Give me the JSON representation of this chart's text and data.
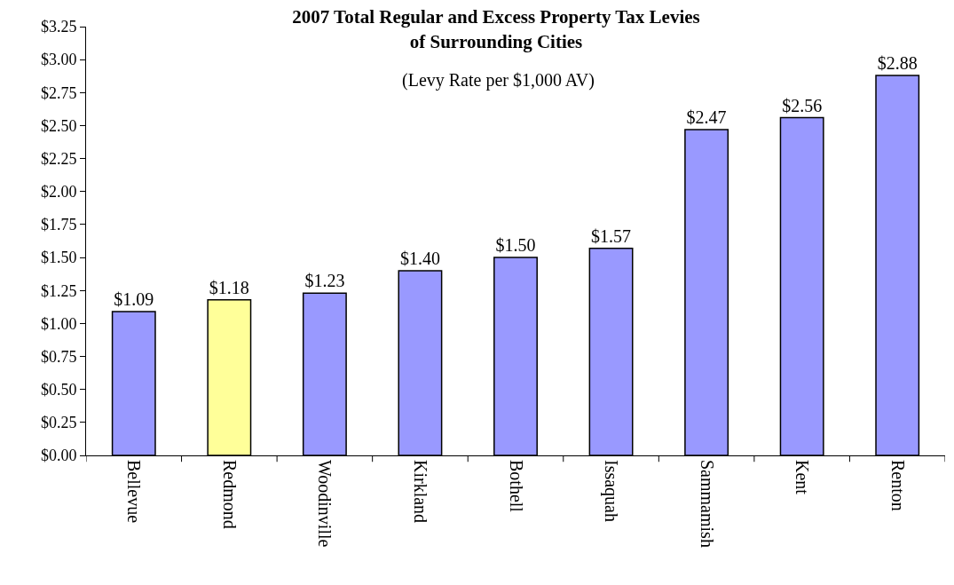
{
  "chart_data": {
    "type": "bar",
    "title": "2007 Total Regular and Excess Property Tax Levies\nof Surrounding Cities",
    "subtitle": "(Levy Rate per $1,000 AV)",
    "categories": [
      "Bellevue",
      "Redmond",
      "Woodinville",
      "Kirkland",
      "Bothell",
      "Issaquah",
      "Sammamish",
      "Kent",
      "Renton"
    ],
    "values": [
      1.09,
      1.18,
      1.23,
      1.4,
      1.5,
      1.57,
      2.47,
      2.56,
      2.88
    ],
    "colors": [
      "#9999ff",
      "#ffff99",
      "#9999ff",
      "#9999ff",
      "#9999ff",
      "#9999ff",
      "#9999ff",
      "#9999ff",
      "#9999ff"
    ],
    "value_labels": [
      "$1.09",
      "$1.18",
      "$1.23",
      "$1.40",
      "$1.50",
      "$1.57",
      "$2.47",
      "$2.56",
      "$2.88"
    ],
    "ylim": [
      0,
      3.25
    ],
    "yticks": [
      {
        "value": 0,
        "label": "$0.00"
      },
      {
        "value": 0.25,
        "label": "$0.25"
      },
      {
        "value": 0.5,
        "label": "$0.50"
      },
      {
        "value": 0.75,
        "label": "$0.75"
      },
      {
        "value": 1,
        "label": "$1.00"
      },
      {
        "value": 1.25,
        "label": "$1.25"
      },
      {
        "value": 1.5,
        "label": "$1.50"
      },
      {
        "value": 1.75,
        "label": "$1.75"
      },
      {
        "value": 2,
        "label": "$2.00"
      },
      {
        "value": 2.25,
        "label": "$2.25"
      },
      {
        "value": 2.5,
        "label": "$2.50"
      },
      {
        "value": 2.75,
        "label": "$2.75"
      },
      {
        "value": 3,
        "label": "$3.00"
      },
      {
        "value": 3.25,
        "label": "$3.25"
      }
    ],
    "grid": false,
    "legend": false
  }
}
